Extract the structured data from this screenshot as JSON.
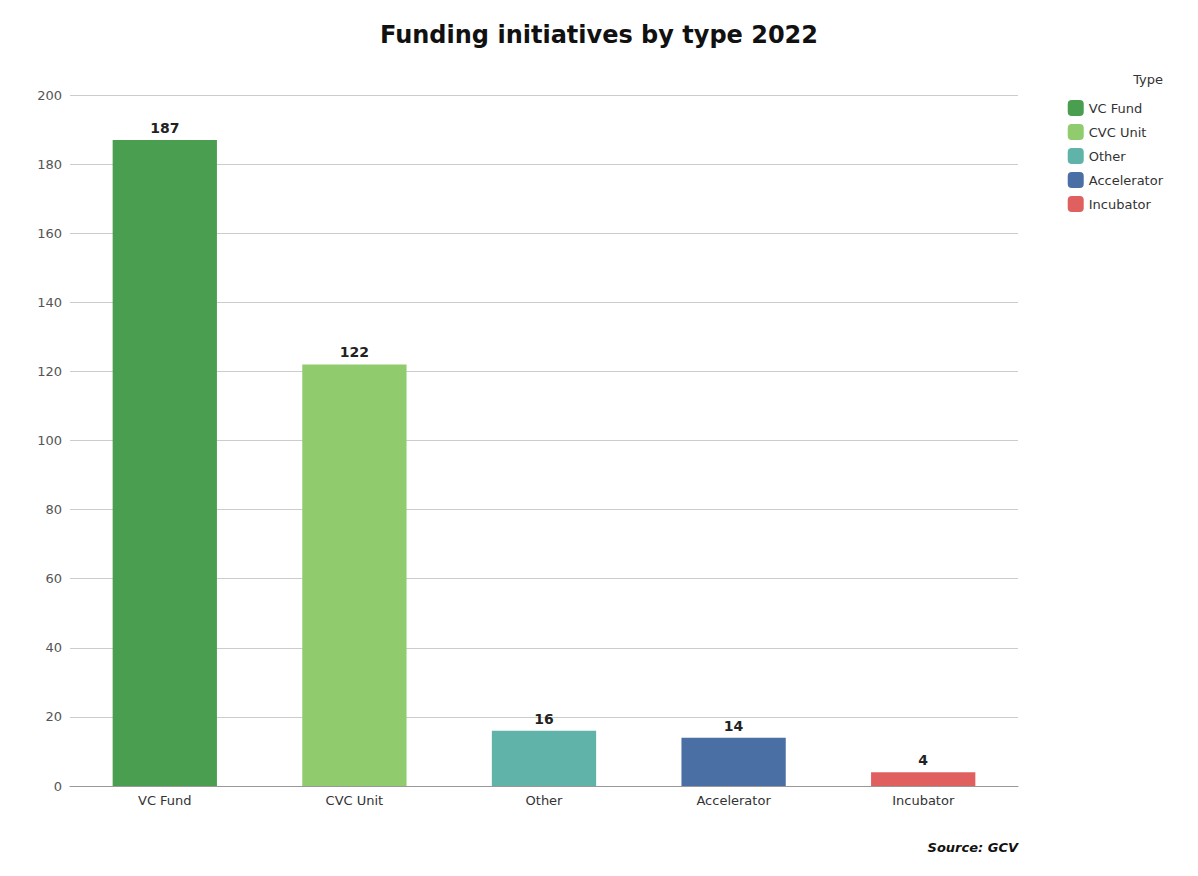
{
  "chart_data": {
    "type": "bar",
    "title": "Funding initiatives by type 2022",
    "categories": [
      "VC Fund",
      "CVC Unit",
      "Other",
      "Accelerator",
      "Incubator"
    ],
    "values": [
      187,
      122,
      16,
      14,
      4
    ],
    "colors": [
      "#4a9e4f",
      "#90cc6e",
      "#5fb3a8",
      "#4a6fa5",
      "#e06060"
    ],
    "ylim": [
      0,
      200
    ],
    "yticks": [
      0,
      20,
      40,
      60,
      80,
      100,
      120,
      140,
      160,
      180,
      200
    ],
    "grid": true,
    "data_labels": true,
    "legend": "upper right",
    "legend_title": "Type",
    "annotations": [
      "Source: GCV"
    ]
  }
}
